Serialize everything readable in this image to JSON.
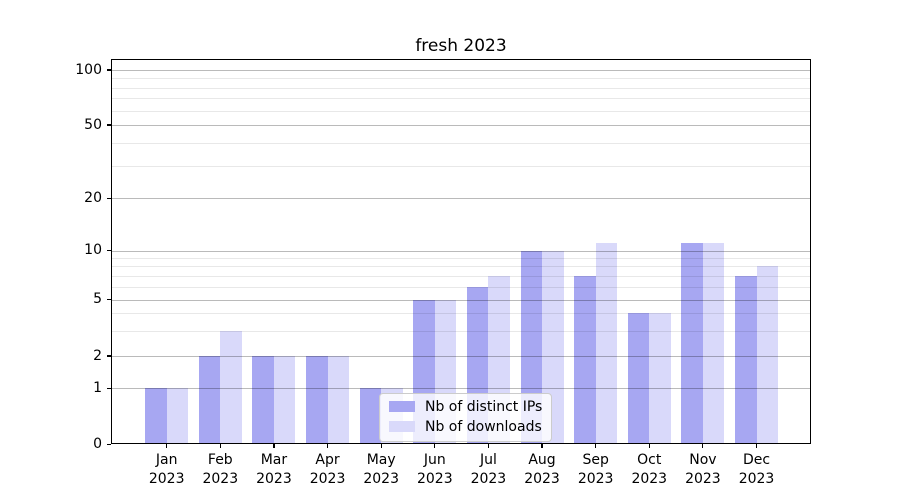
{
  "title": "fresh 2023",
  "chart_data": {
    "type": "bar",
    "categories": [
      "Jan",
      "Feb",
      "Mar",
      "Apr",
      "May",
      "Jun",
      "Jul",
      "Aug",
      "Sep",
      "Oct",
      "Nov",
      "Dec"
    ],
    "year_label": "2023",
    "series": [
      {
        "name": "Nb of distinct IPs",
        "color": "#a7a7f2",
        "values": [
          1,
          2,
          2,
          2,
          1,
          5,
          6,
          10,
          7,
          4,
          11,
          7
        ]
      },
      {
        "name": "Nb of downloads",
        "color": "#d9d9fa",
        "values": [
          1,
          3,
          2,
          2,
          1,
          5,
          7,
          10,
          11,
          4,
          11,
          8
        ]
      }
    ],
    "xlabel": "",
    "ylabel": "",
    "y_axis": {
      "scale": "symlog-like",
      "major_ticks": [
        0,
        1,
        2,
        5,
        10,
        20,
        50,
        100
      ],
      "minor_ticks": [
        3,
        4,
        6,
        7,
        8,
        9,
        30,
        40,
        60,
        70,
        80,
        90
      ],
      "ylim": [
        0,
        115
      ]
    },
    "grid": "on",
    "legend": {
      "position": "lower-center-inside",
      "items": [
        "Nb of distinct IPs",
        "Nb of downloads"
      ]
    }
  }
}
